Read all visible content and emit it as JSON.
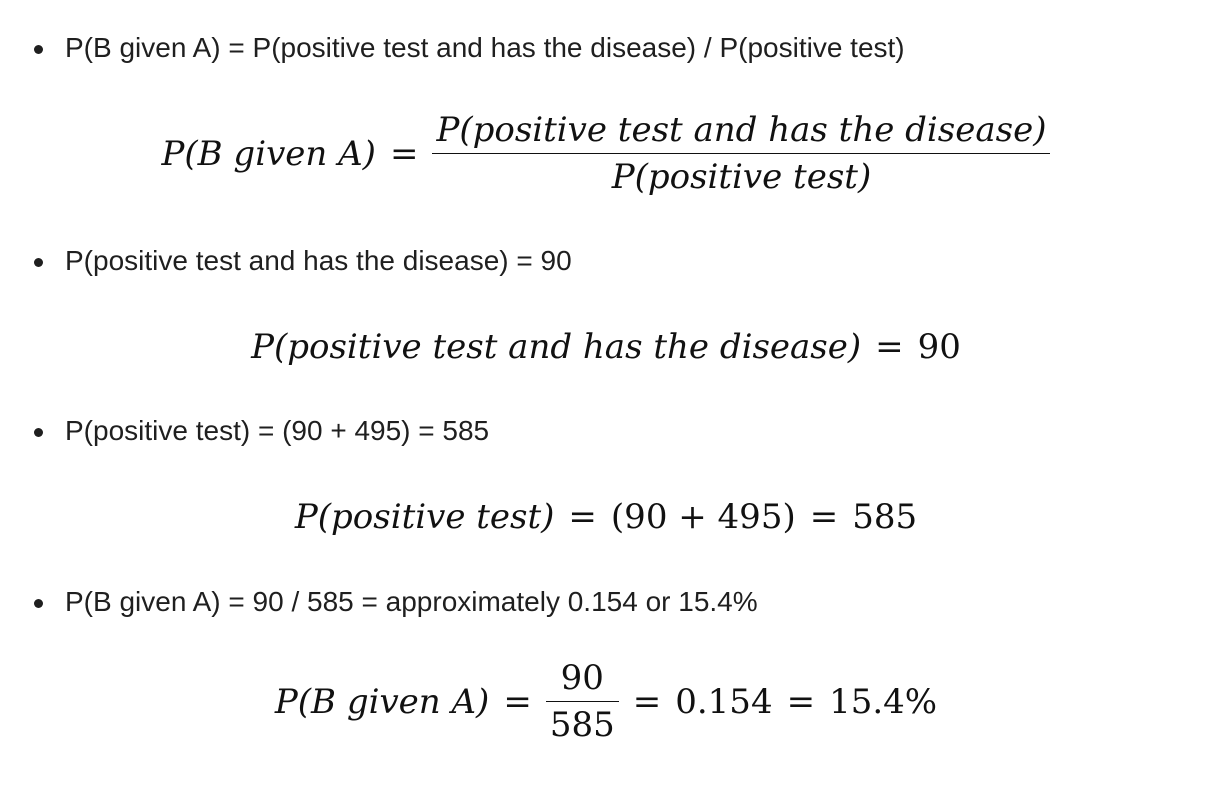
{
  "bullets": [
    {
      "text": "P(B given A) = P(positive test and has the disease) / P(positive test)"
    },
    {
      "text": "P(positive test and has the disease) = 90"
    },
    {
      "text": "P(positive test) = (90 + 495) = 585"
    },
    {
      "text": "P(B given A) = 90 / 585 = approximately 0.154 or 15.4%"
    }
  ],
  "equations": {
    "eq1": {
      "lhs": "P(B given A)",
      "equals": "=",
      "numerator": "P(positive test and has the disease)",
      "denominator": "P(positive test)"
    },
    "eq2": {
      "lhs": "P(positive test and has the disease)",
      "equals": "=",
      "rhs": "90"
    },
    "eq3": {
      "lhs": "P(positive test)",
      "equals1": "=",
      "middle": "(90 + 495)",
      "equals2": "=",
      "rhs": "585"
    },
    "eq4": {
      "lhs": "P(B given A)",
      "equals1": "=",
      "numerator": "90",
      "denominator": "585",
      "equals2": "=",
      "decimal": "0.154",
      "equals3": "=",
      "percent": "15.4%"
    }
  }
}
